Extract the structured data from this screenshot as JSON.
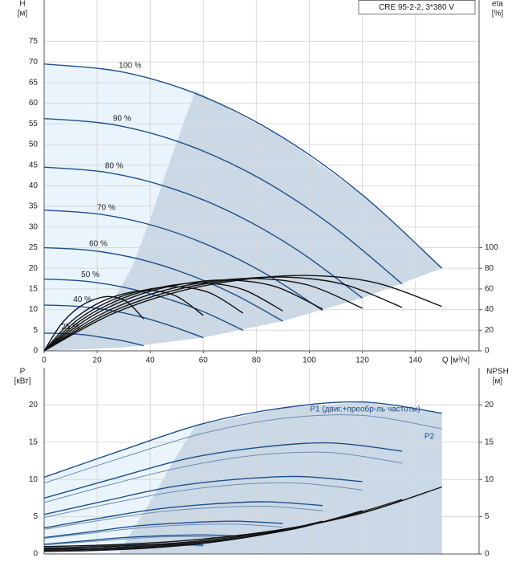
{
  "chart_data": [
    {
      "type": "line",
      "title": "CRE 95-2-2, 3*380 V",
      "xlabel": "Q [м³/ч]",
      "ylabel": "H",
      "yunit": "[м]",
      "y2label": "eta",
      "y2unit": "[%]",
      "xlim": [
        0,
        164
      ],
      "xticks": [
        0,
        20,
        40,
        60,
        80,
        100,
        120,
        140
      ],
      "ylim": [
        0,
        85
      ],
      "yticks": [
        0,
        5,
        10,
        15,
        20,
        25,
        30,
        35,
        40,
        45,
        50,
        55,
        60,
        65,
        70,
        75
      ],
      "y2lim": [
        0,
        340
      ],
      "y2ticks": [
        0,
        20,
        40,
        60,
        80,
        100
      ],
      "grid": true,
      "regions": [
        {
          "color": "#eaf4fc",
          "x": [
            0,
            0,
            30,
            57,
            48,
            40,
            33,
            24,
            12,
            0
          ],
          "values": [
            0,
            69.5,
            67.5,
            63,
            47,
            32,
            20,
            10,
            4,
            0
          ]
        },
        {
          "color": "#cbd8e5",
          "x": [
            0,
            12,
            24,
            33,
            40,
            48,
            57,
            90,
            120,
            150,
            120,
            90,
            60,
            30,
            0
          ],
          "values": [
            0,
            4,
            10,
            20,
            32,
            47,
            63,
            51.7,
            37.8,
            20,
            12.8,
            7.2,
            3.2,
            0.8,
            0
          ]
        }
      ],
      "series": [
        {
          "name": "100 %",
          "color": "#1d4f8a",
          "x": [
            0,
            30,
            60,
            90,
            120,
            150
          ],
          "values": [
            69.5,
            67.5,
            61.6,
            51.7,
            37.8,
            20.0
          ]
        },
        {
          "name": "90 %",
          "color": "#1d4f8a",
          "x": [
            0,
            27,
            54,
            81,
            108,
            135
          ],
          "values": [
            56.3,
            54.7,
            49.9,
            41.9,
            30.6,
            16.2
          ]
        },
        {
          "name": "80 %",
          "color": "#1d4f8a",
          "x": [
            0,
            24,
            48,
            72,
            96,
            120
          ],
          "values": [
            44.5,
            43.2,
            39.4,
            33.1,
            24.2,
            12.8
          ]
        },
        {
          "name": "70 %",
          "color": "#1d4f8a",
          "x": [
            0,
            21,
            42,
            63,
            84,
            105
          ],
          "values": [
            34.1,
            33.1,
            30.2,
            25.3,
            18.5,
            9.8
          ]
        },
        {
          "name": "60 %",
          "color": "#1d4f8a",
          "x": [
            0,
            18,
            36,
            54,
            72,
            90
          ],
          "values": [
            25.0,
            24.3,
            22.2,
            18.6,
            13.6,
            7.2
          ]
        },
        {
          "name": "50 %",
          "color": "#1d4f8a",
          "x": [
            0,
            15,
            30,
            45,
            60,
            75
          ],
          "values": [
            17.4,
            16.9,
            15.4,
            12.9,
            9.5,
            5.0
          ]
        },
        {
          "name": "40 %",
          "color": "#1d4f8a",
          "x": [
            0,
            12,
            24,
            36,
            48,
            60
          ],
          "values": [
            11.1,
            10.8,
            9.9,
            8.3,
            6.0,
            3.2
          ]
        },
        {
          "name": "25 %",
          "color": "#1d4f8a",
          "x": [
            0,
            7.5,
            15,
            22.5,
            30,
            37.5
          ],
          "values": [
            4.3,
            4.2,
            3.9,
            3.2,
            2.4,
            1.25
          ]
        },
        {
          "axis": "y2",
          "color": "#111111",
          "x": [
            0,
            25,
            50,
            75,
            100,
            125,
            150
          ],
          "values": [
            0,
            35,
            57,
            69,
            73,
            66,
            43
          ]
        },
        {
          "axis": "y2",
          "color": "#111111",
          "x": [
            0,
            22.5,
            45,
            67.5,
            90,
            112.5,
            135
          ],
          "values": [
            0,
            34.3,
            55.9,
            67.6,
            71.5,
            64.7,
            42.1
          ]
        },
        {
          "axis": "y2",
          "color": "#111111",
          "x": [
            0,
            20,
            40,
            60,
            80,
            100,
            120
          ],
          "values": [
            0,
            33.6,
            54.7,
            66.2,
            70.1,
            63.4,
            41.3
          ]
        },
        {
          "axis": "y2",
          "color": "#111111",
          "x": [
            0,
            17.5,
            35,
            52.5,
            70,
            87.5,
            105
          ],
          "values": [
            0,
            32.9,
            53.6,
            64.9,
            68.6,
            62.0,
            40.4
          ]
        },
        {
          "axis": "y2",
          "color": "#111111",
          "x": [
            0,
            15,
            30,
            45,
            60,
            75,
            90
          ],
          "values": [
            0,
            31.5,
            51.3,
            62.1,
            65.7,
            59.4,
            38.7
          ]
        },
        {
          "axis": "y2",
          "color": "#111111",
          "x": [
            0,
            12.5,
            25,
            37.5,
            50,
            62.5,
            75
          ],
          "values": [
            0,
            29.8,
            48.5,
            58.7,
            62.1,
            56.1,
            36.6
          ]
        },
        {
          "axis": "y2",
          "color": "#111111",
          "x": [
            0,
            10,
            20,
            30,
            40,
            50,
            60
          ],
          "values": [
            0,
            28,
            45.6,
            55.2,
            58.4,
            52.8,
            34.4
          ]
        },
        {
          "axis": "y2",
          "color": "#111111",
          "x": [
            0,
            6.25,
            12.5,
            18.75,
            25,
            31.25,
            37.5
          ],
          "values": [
            0,
            25.2,
            41,
            49.7,
            52.6,
            47.5,
            31
          ]
        }
      ]
    },
    {
      "type": "line",
      "ylabel": "P",
      "yunit": "[кВт]",
      "y2label": "NPSH",
      "y2unit": "[м]",
      "xlim": [
        0,
        164
      ],
      "ylim": [
        0,
        25
      ],
      "yticks": [
        0,
        5,
        10,
        15,
        20
      ],
      "y2lim": [
        0,
        25
      ],
      "y2ticks": [
        0,
        5,
        10,
        15,
        20
      ],
      "grid": true,
      "annotations": [
        "P1 (двиг.+преобр-ль частоты)",
        "P2"
      ],
      "regions": [
        {
          "color": "#eaf4fc",
          "x": [
            0,
            0,
            30,
            57,
            48,
            40,
            33,
            28,
            0
          ],
          "values": [
            0,
            10.3,
            14,
            17.2,
            12,
            7,
            3,
            0,
            0
          ]
        },
        {
          "color": "#cbd8e5",
          "x": [
            28,
            33,
            40,
            48,
            57,
            90,
            120,
            150,
            150,
            28
          ],
          "values": [
            0,
            3,
            7,
            12,
            17.2,
            19.6,
            20.4,
            18.9,
            0,
            0
          ]
        }
      ],
      "series": [
        {
          "color": "#1d4f8a",
          "x": [
            0,
            30,
            60,
            90,
            120,
            150
          ],
          "values": [
            10.3,
            14,
            17.5,
            19.6,
            20.4,
            18.9
          ]
        },
        {
          "color": "#6c8db3",
          "x": [
            0,
            30,
            60,
            90,
            120,
            150
          ],
          "values": [
            9.5,
            13,
            16.2,
            18.2,
            18.6,
            16.8
          ]
        },
        {
          "color": "#1d4f8a",
          "x": [
            0,
            27,
            54,
            81,
            108,
            135
          ],
          "values": [
            7.5,
            10.2,
            12.8,
            14.3,
            14.9,
            13.8
          ]
        },
        {
          "color": "#6c8db3",
          "x": [
            0,
            27,
            54,
            81,
            108,
            135
          ],
          "values": [
            6.9,
            9.5,
            11.8,
            13.3,
            13.6,
            12.2
          ]
        },
        {
          "color": "#1d4f8a",
          "x": [
            0,
            24,
            48,
            72,
            96,
            120
          ],
          "values": [
            5.3,
            7.2,
            9.0,
            10.0,
            10.4,
            9.7
          ]
        },
        {
          "color": "#6c8db3",
          "x": [
            0,
            24,
            48,
            72,
            96,
            120
          ],
          "values": [
            4.9,
            6.7,
            8.3,
            9.3,
            9.5,
            8.6
          ]
        },
        {
          "color": "#1d4f8a",
          "x": [
            0,
            21,
            42,
            63,
            84,
            105
          ],
          "values": [
            3.5,
            4.8,
            6.0,
            6.7,
            7.0,
            6.5
          ]
        },
        {
          "color": "#6c8db3",
          "x": [
            0,
            21,
            42,
            63,
            84,
            105
          ],
          "values": [
            3.3,
            4.5,
            5.6,
            6.2,
            6.4,
            5.8
          ]
        },
        {
          "color": "#1d4f8a",
          "x": [
            0,
            18,
            36,
            54,
            72,
            90
          ],
          "values": [
            2.2,
            3.0,
            3.8,
            4.2,
            4.4,
            4.1
          ]
        },
        {
          "color": "#6c8db3",
          "x": [
            0,
            18,
            36,
            54,
            72,
            90
          ],
          "values": [
            2.1,
            2.8,
            3.5,
            3.9,
            4.0,
            3.6
          ]
        },
        {
          "color": "#1d4f8a",
          "x": [
            0,
            15,
            30,
            45,
            60,
            75
          ],
          "values": [
            1.3,
            1.75,
            2.2,
            2.45,
            2.55,
            2.4
          ]
        },
        {
          "color": "#6c8db3",
          "x": [
            0,
            15,
            30,
            45,
            60,
            75
          ],
          "values": [
            1.2,
            1.6,
            2.0,
            2.3,
            2.3,
            2.1
          ]
        },
        {
          "color": "#1d4f8a",
          "x": [
            0,
            12,
            24,
            36,
            48,
            60
          ],
          "values": [
            0.66,
            0.9,
            1.1,
            1.25,
            1.3,
            1.2
          ]
        },
        {
          "color": "#6c8db3",
          "x": [
            0,
            12,
            24,
            36,
            48,
            60
          ],
          "values": [
            0.61,
            0.83,
            1.04,
            1.16,
            1.19,
            1.08
          ]
        },
        {
          "axis": "y2",
          "color": "#111111",
          "x": [
            0,
            30,
            60,
            90,
            120,
            150
          ],
          "values": [
            1.0,
            1.3,
            2.0,
            3.3,
            5.5,
            9.0
          ]
        },
        {
          "axis": "y2",
          "color": "#111111",
          "x": [
            0,
            27,
            54,
            81,
            108,
            135
          ],
          "values": [
            0.8,
            1.05,
            1.6,
            2.7,
            4.5,
            7.3
          ]
        },
        {
          "axis": "y2",
          "color": "#111111",
          "x": [
            0,
            24,
            48,
            72,
            96,
            120
          ],
          "values": [
            0.64,
            0.83,
            1.28,
            2.1,
            3.5,
            5.8
          ]
        },
        {
          "axis": "y2",
          "color": "#111111",
          "x": [
            0,
            21,
            42,
            63,
            84,
            105
          ],
          "values": [
            0.49,
            0.64,
            0.98,
            1.6,
            2.7,
            4.4
          ]
        },
        {
          "axis": "y2",
          "color": "#111111",
          "x": [
            0,
            18,
            36,
            54,
            72,
            90
          ],
          "values": [
            0.36,
            0.47,
            0.72,
            1.2,
            2.0,
            3.2
          ]
        }
      ]
    }
  ]
}
